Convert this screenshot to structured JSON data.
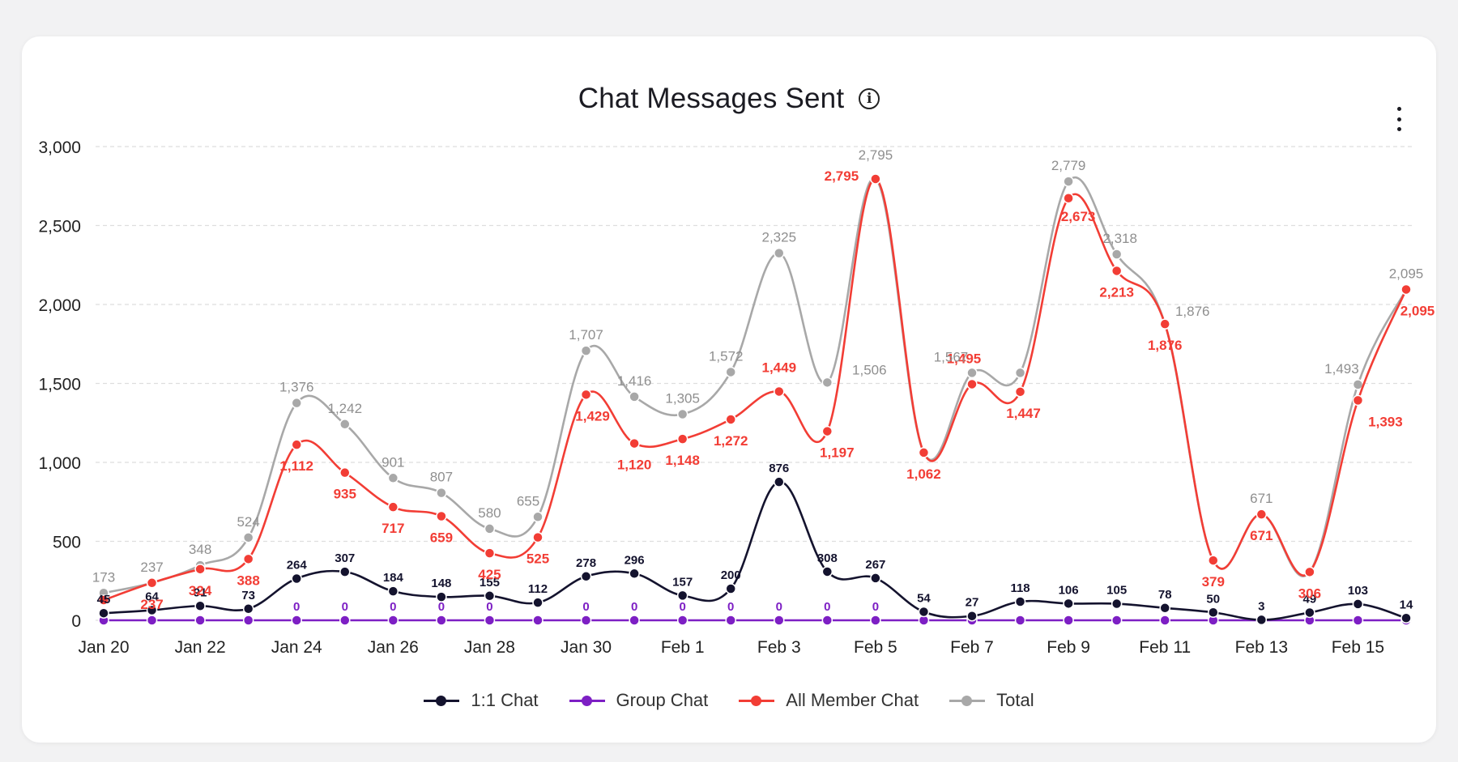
{
  "header": {
    "title": "Chat Messages Sent",
    "info_icon": "info-icon",
    "menu_icon": "more-vertical-icon"
  },
  "legend": [
    {
      "name": "1:1 Chat",
      "color": "#14132e"
    },
    {
      "name": "Group Chat",
      "color": "#7d1fc4"
    },
    {
      "name": "All Member Chat",
      "color": "#f23d35"
    },
    {
      "name": "Total",
      "color": "#a8a8a8"
    }
  ],
  "chart_data": {
    "type": "line",
    "title": "Chat Messages Sent",
    "xlabel": "",
    "ylabel": "",
    "ylim": [
      0,
      3000
    ],
    "yticks": [
      "0",
      "500",
      "1,000",
      "1,500",
      "2,000",
      "2,500",
      "3,000"
    ],
    "grid": true,
    "legend_position": "bottom",
    "x": [
      "Jan 20",
      "Jan 21",
      "Jan 22",
      "Jan 23",
      "Jan 24",
      "Jan 25",
      "Jan 26",
      "Jan 27",
      "Jan 28",
      "Jan 29",
      "Jan 30",
      "Jan 31",
      "Feb 1",
      "Feb 2",
      "Feb 3",
      "Feb 4",
      "Feb 5",
      "Feb 6",
      "Feb 7",
      "Feb 8",
      "Feb 9",
      "Feb 10",
      "Feb 11",
      "Feb 12",
      "Feb 13",
      "Feb 14",
      "Feb 15",
      "Feb 16"
    ],
    "xtick_labels": [
      "Jan 20",
      "Jan 22",
      "Jan 24",
      "Jan 26",
      "Jan 28",
      "Jan 30",
      "Feb 1",
      "Feb 3",
      "Feb 5",
      "Feb 7",
      "Feb 9",
      "Feb 11",
      "Feb 13",
      "Feb 15"
    ],
    "series": [
      {
        "name": "1:1 Chat",
        "color": "#14132e",
        "values": [
          45,
          64,
          91,
          73,
          264,
          307,
          184,
          148,
          155,
          112,
          278,
          296,
          157,
          200,
          876,
          308,
          267,
          54,
          27,
          118,
          106,
          105,
          78,
          50,
          3,
          49,
          103,
          14
        ],
        "labels": [
          "45",
          "64",
          "91",
          "73",
          "264",
          "307",
          "184",
          "148",
          "155",
          "112",
          "278",
          "296",
          "157",
          "200",
          "876",
          "308",
          "267",
          "54",
          "27",
          "118",
          "106",
          "105",
          "78",
          "50",
          "3",
          "49",
          "103",
          "14"
        ]
      },
      {
        "name": "Group Chat",
        "color": "#7d1fc4",
        "values": [
          0,
          0,
          0,
          0,
          0,
          0,
          0,
          0,
          0,
          0,
          0,
          0,
          0,
          0,
          0,
          0,
          0,
          0,
          0,
          0,
          0,
          0,
          0,
          0,
          0,
          0,
          0,
          0
        ],
        "labels": [
          "",
          "",
          "",
          "",
          "0",
          "0",
          "0",
          "0",
          "0",
          "",
          "0",
          "0",
          "0",
          "0",
          "0",
          "0",
          "0",
          "",
          "",
          "",
          "",
          "",
          "",
          "",
          "",
          "",
          "",
          ""
        ]
      },
      {
        "name": "All Member Chat",
        "color": "#f23d35",
        "values": [
          128,
          237,
          324,
          388,
          1112,
          935,
          717,
          659,
          425,
          525,
          1429,
          1120,
          1148,
          1272,
          1449,
          1197,
          2795,
          1062,
          1495,
          1447,
          2673,
          2213,
          1876,
          379,
          671,
          306,
          1393,
          2095
        ],
        "labels": [
          "",
          "237",
          "324",
          "388",
          "1,112",
          "935",
          "717",
          "659",
          "425",
          "525",
          "1,429",
          "1,120",
          "1,148",
          "1,272",
          "1,449",
          "1,197",
          "2,795",
          "1,062",
          "1,495",
          "1,447",
          "2,673",
          "2,213",
          "1,876",
          "379",
          "671",
          "306",
          "1,393",
          "2,095"
        ]
      },
      {
        "name": "Total",
        "color": "#a8a8a8",
        "values": [
          173,
          237,
          348,
          524,
          1376,
          1242,
          901,
          807,
          580,
          655,
          1707,
          1416,
          1305,
          1572,
          2325,
          1506,
          2795,
          1062,
          1567,
          1567,
          2779,
          2318,
          1876,
          379,
          671,
          306,
          1493,
          2095
        ],
        "labels": [
          "173",
          "237",
          "348",
          "524",
          "1,376",
          "1,242",
          "901",
          "807",
          "580",
          "655",
          "1,707",
          "1,416",
          "1,305",
          "1,572",
          "2,325",
          "1,506",
          "2,795",
          "",
          "1,567",
          "",
          "2,779",
          "2,318",
          "1,876",
          "",
          "671",
          "",
          "1,493",
          "2,095"
        ]
      }
    ]
  }
}
